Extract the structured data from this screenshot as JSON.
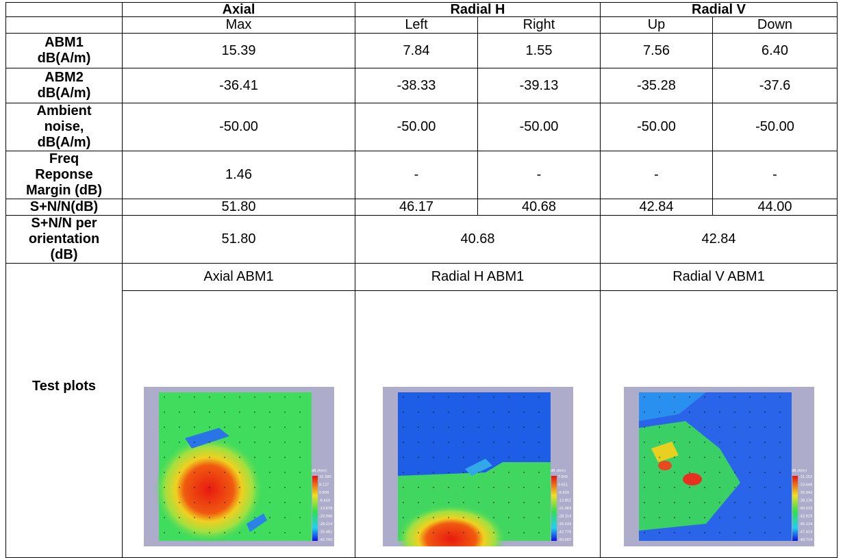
{
  "headers": {
    "groups": [
      "Axial",
      "Radial H",
      "Radial V"
    ],
    "sub": [
      "Max",
      "Left",
      "Right",
      "Up",
      "Down"
    ]
  },
  "rows": [
    {
      "label": [
        "ABM1",
        "dB(A/m)"
      ],
      "values": [
        "15.39",
        "7.84",
        "1.55",
        "7.56",
        "6.40"
      ]
    },
    {
      "label": [
        "ABM2",
        "dB(A/m)"
      ],
      "values": [
        "-36.41",
        "-38.33",
        "-39.13",
        "-35.28",
        "-37.6"
      ]
    },
    {
      "label": [
        "Ambient",
        "noise,",
        "dB(A/m)"
      ],
      "values": [
        "-50.00",
        "-50.00",
        "-50.00",
        "-50.00",
        "-50.00"
      ]
    },
    {
      "label": [
        "Freq",
        "Reponse",
        "Margin (dB)"
      ],
      "values": [
        "1.46",
        "-",
        "-",
        "-",
        "-"
      ]
    },
    {
      "label": [
        "S+N/N(dB)"
      ],
      "values": [
        "51.80",
        "46.17",
        "40.68",
        "42.84",
        "44.00"
      ]
    }
  ],
  "orientation": {
    "label": [
      "S+N/N per",
      "orientation",
      "(dB)"
    ],
    "values": [
      "51.80",
      "40.68",
      "42.84"
    ]
  },
  "plots": {
    "label": "Test plots",
    "items": [
      {
        "title": "Axial ABM1",
        "legend_title": "dB (A/m)",
        "legend": [
          "15.395",
          "8.127",
          "0.858",
          "-6.410",
          "-13.678",
          "-20.946",
          "-28.214",
          "-35.482",
          "-42.750"
        ]
      },
      {
        "title": "Radial H ABM1",
        "legend_title": "dB (A/m)",
        "legend": [
          "7.642",
          "0.611",
          "-6.620",
          "-13.851",
          "-21.083",
          "-28.314",
          "-35.545",
          "-42.776",
          "-50.007"
        ]
      },
      {
        "title": "Radial V ABM1",
        "legend_title": "dB (A/m)",
        "legend": [
          "-31.252",
          "-33.648",
          "-35.942",
          "-38.236",
          "-40.533",
          "-42.829",
          "-45.124",
          "-47.419",
          "-49.714"
        ]
      }
    ]
  }
}
